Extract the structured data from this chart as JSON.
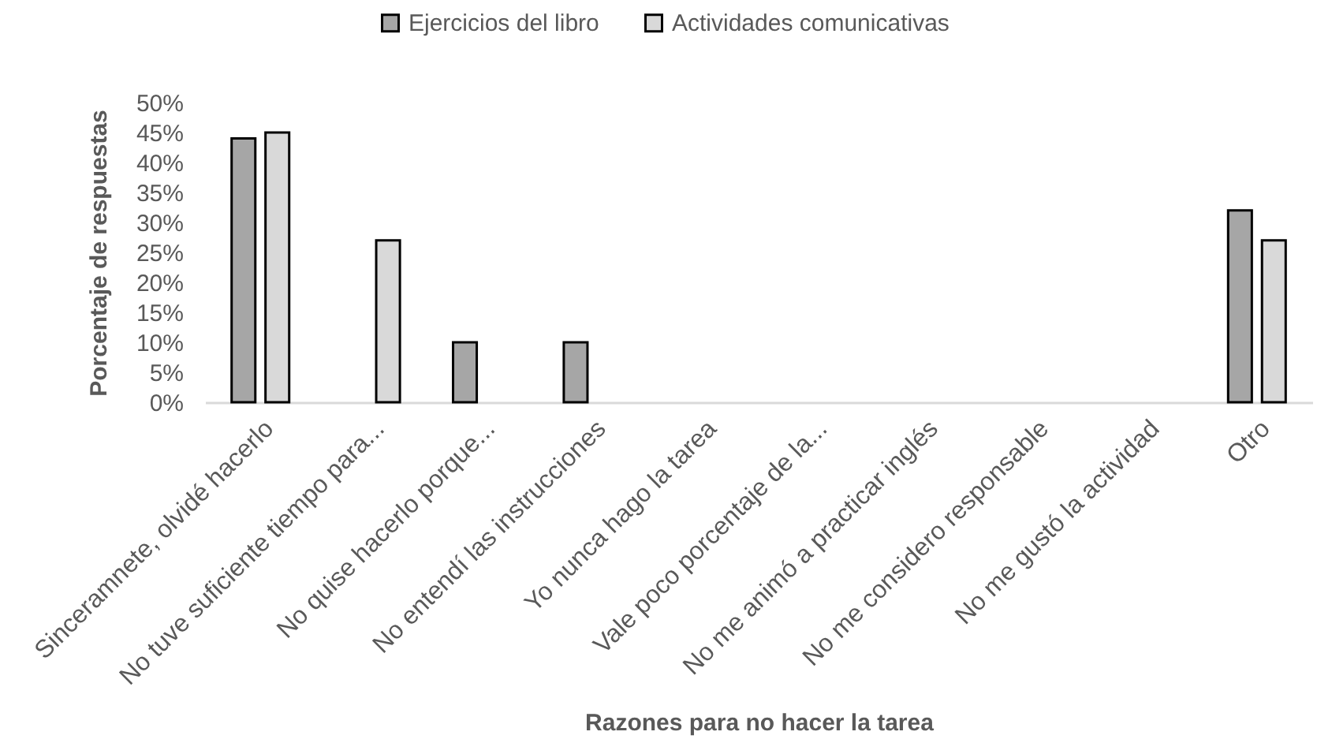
{
  "chart_data": {
    "type": "bar",
    "xlabel": "Razones para no hacer la tarea",
    "ylabel": "Porcentaje de respuestas",
    "categories": [
      "Sinceramnete, olvidé hacerlo",
      "No tuve suficiente tiempo para...",
      "No quise hacerlo porque...",
      "No entendí las instrucciones",
      "Yo nunca hago la tarea",
      "Vale poco porcentaje de la...",
      "No me animó a practicar inglés",
      "No me considero responsable",
      "No me gustó la actividad",
      "Otro"
    ],
    "series": [
      {
        "name": "Ejercicios del libro",
        "color": "#a6a6a6",
        "values": [
          44,
          null,
          10,
          10,
          null,
          null,
          null,
          null,
          null,
          32
        ]
      },
      {
        "name": "Actividades comunicativas",
        "color": "#d9d9d9",
        "values": [
          45,
          27,
          null,
          null,
          null,
          null,
          null,
          null,
          null,
          27
        ]
      }
    ],
    "ylim": [
      0,
      50
    ],
    "yticks": [
      {
        "value": 0,
        "label": "0%"
      },
      {
        "value": 5,
        "label": "5%"
      },
      {
        "value": 10,
        "label": "10%"
      },
      {
        "value": 15,
        "label": "15%"
      },
      {
        "value": 20,
        "label": "20%"
      },
      {
        "value": 25,
        "label": "25%"
      },
      {
        "value": 30,
        "label": "30%"
      },
      {
        "value": 35,
        "label": "35%"
      },
      {
        "value": 40,
        "label": "40%"
      },
      {
        "value": 45,
        "label": "45%"
      },
      {
        "value": 50,
        "label": "50%"
      }
    ],
    "grid": false,
    "legend": "top"
  }
}
